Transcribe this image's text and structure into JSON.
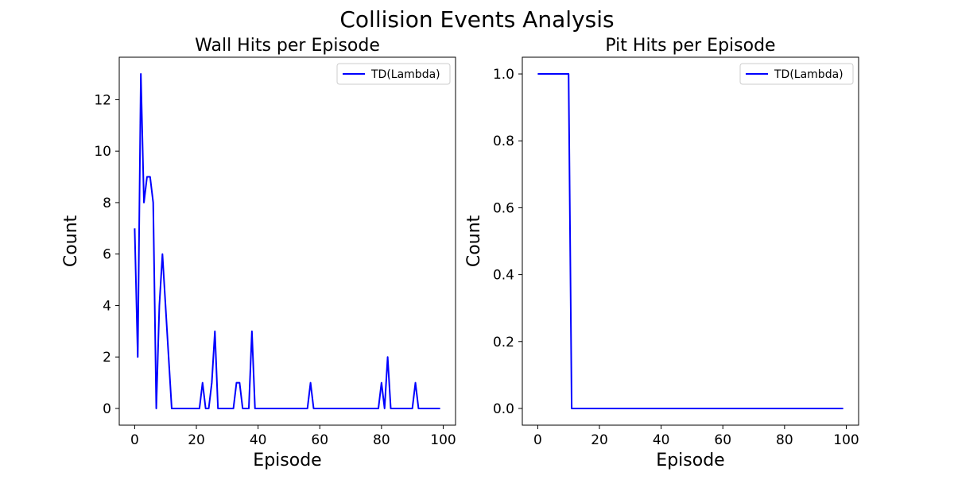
{
  "figure": {
    "suptitle": "Collision Events Analysis"
  },
  "chart_data": [
    {
      "type": "line",
      "title": "Wall Hits per Episode",
      "xlabel": "Episode",
      "ylabel": "Count",
      "xlim": [
        -5,
        104
      ],
      "ylim": [
        -0.65,
        13.65
      ],
      "xticks": [
        0,
        20,
        40,
        60,
        80,
        100
      ],
      "yticks": [
        0,
        2,
        4,
        6,
        8,
        10,
        12
      ],
      "grid": false,
      "legend": "top-right",
      "series": [
        {
          "name": "TD(Lambda)",
          "color": "#0000ff",
          "x": [
            0,
            1,
            2,
            3,
            4,
            5,
            6,
            7,
            8,
            9,
            10,
            11,
            12,
            13,
            14,
            15,
            16,
            17,
            18,
            19,
            20,
            21,
            22,
            23,
            24,
            25,
            26,
            27,
            28,
            29,
            30,
            31,
            32,
            33,
            34,
            35,
            36,
            37,
            38,
            39,
            40,
            41,
            42,
            43,
            44,
            45,
            46,
            47,
            48,
            49,
            50,
            51,
            52,
            53,
            54,
            55,
            56,
            57,
            58,
            59,
            60,
            61,
            62,
            63,
            64,
            65,
            66,
            67,
            68,
            69,
            70,
            71,
            72,
            73,
            74,
            75,
            76,
            77,
            78,
            79,
            80,
            81,
            82,
            83,
            84,
            85,
            86,
            87,
            88,
            89,
            90,
            91,
            92,
            93,
            94,
            95,
            96,
            97,
            98,
            99
          ],
          "values": [
            7,
            2,
            13,
            8,
            9,
            9,
            8,
            0,
            4,
            6,
            4,
            2,
            0,
            0,
            0,
            0,
            0,
            0,
            0,
            0,
            0,
            0,
            1,
            0,
            0,
            1,
            3,
            0,
            0,
            0,
            0,
            0,
            0,
            1,
            1,
            0,
            0,
            0,
            3,
            0,
            0,
            0,
            0,
            0,
            0,
            0,
            0,
            0,
            0,
            0,
            0,
            0,
            0,
            0,
            0,
            0,
            0,
            1,
            0,
            0,
            0,
            0,
            0,
            0,
            0,
            0,
            0,
            0,
            0,
            0,
            0,
            0,
            0,
            0,
            0,
            0,
            0,
            0,
            0,
            0,
            1,
            0,
            2,
            0,
            0,
            0,
            0,
            0,
            0,
            0,
            0,
            1,
            0,
            0,
            0,
            0,
            0,
            0,
            0,
            0
          ]
        }
      ]
    },
    {
      "type": "line",
      "title": "Pit Hits per Episode",
      "xlabel": "Episode",
      "ylabel": "Count",
      "xlim": [
        -5,
        104
      ],
      "ylim": [
        -0.05,
        1.05
      ],
      "xticks": [
        0,
        20,
        40,
        60,
        80,
        100
      ],
      "yticks": [
        0.0,
        0.2,
        0.4,
        0.6,
        0.8,
        1.0
      ],
      "grid": false,
      "legend": "top-right",
      "series": [
        {
          "name": "TD(Lambda)",
          "color": "#0000ff",
          "x": [
            0,
            1,
            2,
            3,
            4,
            5,
            6,
            7,
            8,
            9,
            10,
            11,
            12,
            13,
            14,
            15,
            16,
            17,
            18,
            19,
            20,
            21,
            22,
            23,
            24,
            25,
            26,
            27,
            28,
            29,
            30,
            31,
            32,
            33,
            34,
            35,
            36,
            37,
            38,
            39,
            40,
            41,
            42,
            43,
            44,
            45,
            46,
            47,
            48,
            49,
            50,
            51,
            52,
            53,
            54,
            55,
            56,
            57,
            58,
            59,
            60,
            61,
            62,
            63,
            64,
            65,
            66,
            67,
            68,
            69,
            70,
            71,
            72,
            73,
            74,
            75,
            76,
            77,
            78,
            79,
            80,
            81,
            82,
            83,
            84,
            85,
            86,
            87,
            88,
            89,
            90,
            91,
            92,
            93,
            94,
            95,
            96,
            97,
            98,
            99
          ],
          "values": [
            1,
            1,
            1,
            1,
            1,
            1,
            1,
            1,
            1,
            1,
            1,
            0,
            0,
            0,
            0,
            0,
            0,
            0,
            0,
            0,
            0,
            0,
            0,
            0,
            0,
            0,
            0,
            0,
            0,
            0,
            0,
            0,
            0,
            0,
            0,
            0,
            0,
            0,
            0,
            0,
            0,
            0,
            0,
            0,
            0,
            0,
            0,
            0,
            0,
            0,
            0,
            0,
            0,
            0,
            0,
            0,
            0,
            0,
            0,
            0,
            0,
            0,
            0,
            0,
            0,
            0,
            0,
            0,
            0,
            0,
            0,
            0,
            0,
            0,
            0,
            0,
            0,
            0,
            0,
            0,
            0,
            0,
            0,
            0,
            0,
            0,
            0,
            0,
            0,
            0,
            0,
            0,
            0,
            0,
            0,
            0,
            0,
            0,
            0,
            0
          ]
        }
      ]
    }
  ]
}
